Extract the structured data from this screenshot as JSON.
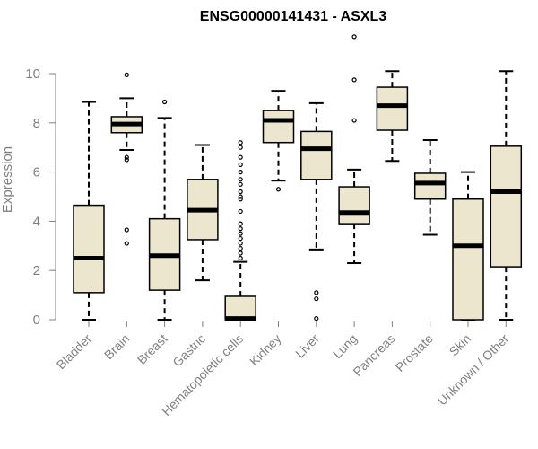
{
  "chart_data": {
    "type": "boxplot",
    "title": "ENSG00000141431 - ASXL3",
    "xlabel": "",
    "ylabel": "Expression",
    "ylim": [
      0,
      11.5
    ],
    "yticks": [
      0,
      2,
      4,
      6,
      8,
      10
    ],
    "box_color": "#ede6cf",
    "categories": [
      "Bladder",
      "Brain",
      "Breast",
      "Gastric",
      "Hematopoietic cells",
      "Kidney",
      "Liver",
      "Lung",
      "Pancreas",
      "Prostate",
      "Skin",
      "Unknown / Other"
    ],
    "boxes": [
      {
        "category": "Bladder",
        "whisker_low": 0.0,
        "q1": 1.1,
        "median": 2.5,
        "q3": 4.65,
        "whisker_high": 8.85,
        "outliers": []
      },
      {
        "category": "Brain",
        "whisker_low": 6.9,
        "q1": 7.6,
        "median": 7.95,
        "q3": 8.25,
        "whisker_high": 9.0,
        "outliers": [
          6.5,
          6.6,
          3.65,
          3.1,
          9.95
        ]
      },
      {
        "category": "Breast",
        "whisker_low": 0.0,
        "q1": 1.2,
        "median": 2.6,
        "q3": 4.1,
        "whisker_high": 8.2,
        "outliers": [
          8.85
        ]
      },
      {
        "category": "Gastric",
        "whisker_low": 1.6,
        "q1": 3.25,
        "median": 4.45,
        "q3": 5.7,
        "whisker_high": 7.1,
        "outliers": []
      },
      {
        "category": "Hematopoietic cells",
        "whisker_low": 0.0,
        "q1": 0.0,
        "median": 0.05,
        "q3": 0.95,
        "whisker_high": 2.35,
        "outliers": [
          2.5,
          2.7,
          2.9,
          3.1,
          3.3,
          3.5,
          3.7,
          3.9,
          4.4,
          4.9,
          5.0,
          5.2,
          5.5,
          5.7,
          6.0,
          6.3,
          6.6,
          7.0,
          7.2
        ]
      },
      {
        "category": "Kidney",
        "whisker_low": 5.65,
        "q1": 7.2,
        "median": 8.1,
        "q3": 8.5,
        "whisker_high": 9.3,
        "outliers": [
          5.3
        ]
      },
      {
        "category": "Liver",
        "whisker_low": 2.85,
        "q1": 5.7,
        "median": 6.95,
        "q3": 7.65,
        "whisker_high": 8.8,
        "outliers": [
          1.1,
          0.85,
          0.05
        ]
      },
      {
        "category": "Lung",
        "whisker_low": 2.3,
        "q1": 3.9,
        "median": 4.35,
        "q3": 5.4,
        "whisker_high": 6.1,
        "outliers": [
          8.1,
          9.75,
          11.5
        ]
      },
      {
        "category": "Pancreas",
        "whisker_low": 6.45,
        "q1": 7.7,
        "median": 8.7,
        "q3": 9.45,
        "whisker_high": 10.1,
        "outliers": []
      },
      {
        "category": "Prostate",
        "whisker_low": 3.45,
        "q1": 4.9,
        "median": 5.55,
        "q3": 5.95,
        "whisker_high": 7.3,
        "outliers": []
      },
      {
        "category": "Skin",
        "whisker_low": 0.0,
        "q1": 0.0,
        "median": 3.0,
        "q3": 4.9,
        "whisker_high": 6.0,
        "outliers": []
      },
      {
        "category": "Unknown / Other",
        "whisker_low": 0.0,
        "q1": 2.15,
        "median": 5.2,
        "q3": 7.05,
        "whisker_high": 10.1,
        "outliers": []
      }
    ]
  }
}
